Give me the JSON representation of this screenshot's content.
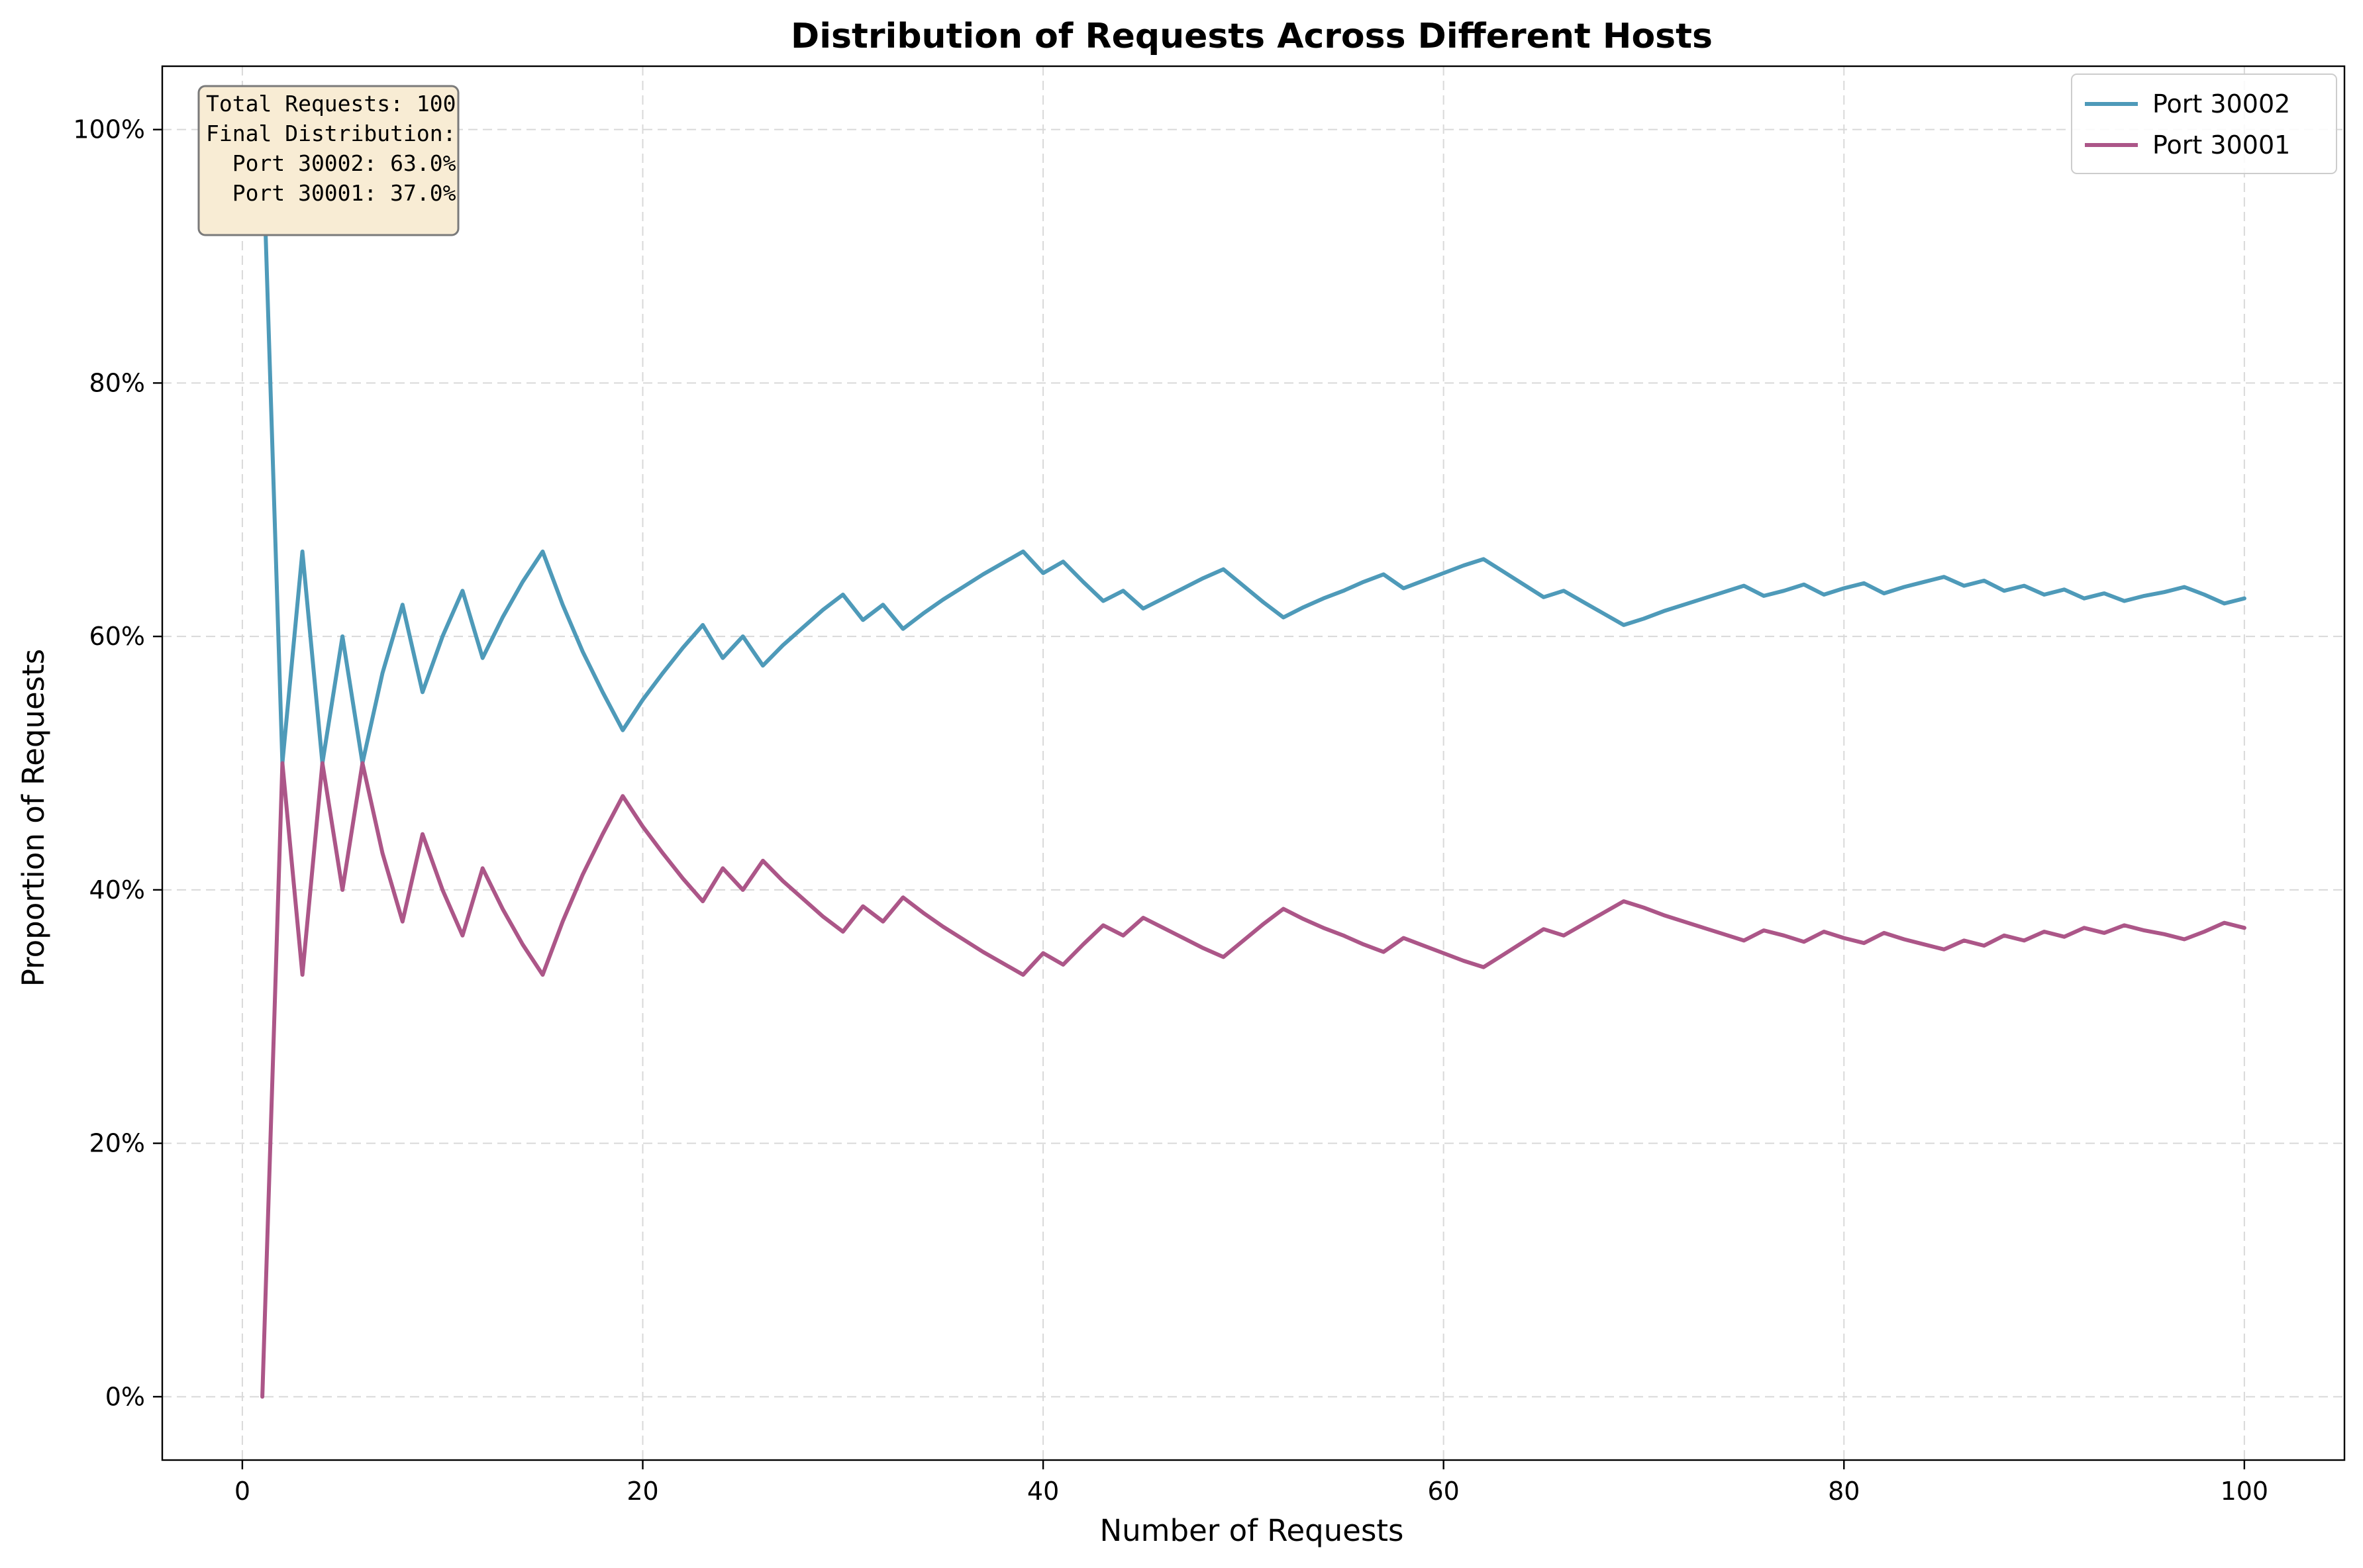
{
  "chart_data": {
    "type": "line",
    "title": "Distribution of Requests Across Different Hosts",
    "xlabel": "Number of Requests",
    "ylabel": "Proportion of Requests",
    "xlim": [
      -4,
      105
    ],
    "ylim": [
      -0.05,
      1.05
    ],
    "x_ticks": [
      0,
      20,
      40,
      60,
      80,
      100
    ],
    "x_tick_labels": [
      "0",
      "20",
      "40",
      "60",
      "80",
      "100"
    ],
    "y_ticks": [
      0,
      0.2,
      0.4,
      0.6,
      0.8,
      1.0
    ],
    "y_tick_labels": [
      "0%",
      "20%",
      "40%",
      "60%",
      "80%",
      "100%"
    ],
    "grid": true,
    "legend_position": "top-right",
    "series": [
      {
        "name": "Port 30002",
        "color": "#4e9ab9",
        "x": [
          1,
          2,
          3,
          4,
          5,
          6,
          7,
          8,
          9,
          10,
          11,
          12,
          13,
          14,
          15,
          16,
          17,
          18,
          19,
          20,
          21,
          22,
          23,
          24,
          25,
          26,
          27,
          28,
          29,
          30,
          31,
          32,
          33,
          34,
          35,
          36,
          37,
          38,
          39,
          40,
          41,
          42,
          43,
          44,
          45,
          46,
          47,
          48,
          49,
          50,
          51,
          52,
          53,
          54,
          55,
          56,
          57,
          58,
          59,
          60,
          61,
          62,
          63,
          64,
          65,
          66,
          67,
          68,
          69,
          70,
          71,
          72,
          73,
          74,
          75,
          76,
          77,
          78,
          79,
          80,
          81,
          82,
          83,
          84,
          85,
          86,
          87,
          88,
          89,
          90,
          91,
          92,
          93,
          94,
          95,
          96,
          97,
          98,
          99,
          100
        ],
        "values": [
          1.0,
          0.5,
          0.667,
          0.5,
          0.6,
          0.5,
          0.571,
          0.625,
          0.556,
          0.6,
          0.636,
          0.583,
          0.615,
          0.643,
          0.667,
          0.625,
          0.588,
          0.556,
          0.526,
          0.55,
          0.571,
          0.591,
          0.609,
          0.583,
          0.6,
          0.577,
          0.593,
          0.607,
          0.621,
          0.633,
          0.613,
          0.625,
          0.606,
          0.618,
          0.629,
          0.639,
          0.649,
          0.658,
          0.667,
          0.65,
          0.659,
          0.643,
          0.628,
          0.636,
          0.622,
          0.63,
          0.638,
          0.646,
          0.653,
          0.64,
          0.627,
          0.615,
          0.623,
          0.63,
          0.636,
          0.643,
          0.649,
          0.638,
          0.644,
          0.65,
          0.656,
          0.661,
          0.651,
          0.641,
          0.631,
          0.636,
          0.627,
          0.618,
          0.609,
          0.614,
          0.62,
          0.625,
          0.63,
          0.635,
          0.64,
          0.632,
          0.636,
          0.641,
          0.633,
          0.638,
          0.642,
          0.634,
          0.639,
          0.643,
          0.647,
          0.64,
          0.644,
          0.636,
          0.64,
          0.633,
          0.637,
          0.63,
          0.634,
          0.628,
          0.632,
          0.635,
          0.639,
          0.633,
          0.626,
          0.63
        ]
      },
      {
        "name": "Port 30001",
        "color": "#ac5688",
        "x": [
          1,
          2,
          3,
          4,
          5,
          6,
          7,
          8,
          9,
          10,
          11,
          12,
          13,
          14,
          15,
          16,
          17,
          18,
          19,
          20,
          21,
          22,
          23,
          24,
          25,
          26,
          27,
          28,
          29,
          30,
          31,
          32,
          33,
          34,
          35,
          36,
          37,
          38,
          39,
          40,
          41,
          42,
          43,
          44,
          45,
          46,
          47,
          48,
          49,
          50,
          51,
          52,
          53,
          54,
          55,
          56,
          57,
          58,
          59,
          60,
          61,
          62,
          63,
          64,
          65,
          66,
          67,
          68,
          69,
          70,
          71,
          72,
          73,
          74,
          75,
          76,
          77,
          78,
          79,
          80,
          81,
          82,
          83,
          84,
          85,
          86,
          87,
          88,
          89,
          90,
          91,
          92,
          93,
          94,
          95,
          96,
          97,
          98,
          99,
          100
        ],
        "values": [
          0.0,
          0.5,
          0.333,
          0.5,
          0.4,
          0.5,
          0.429,
          0.375,
          0.444,
          0.4,
          0.364,
          0.417,
          0.385,
          0.357,
          0.333,
          0.375,
          0.412,
          0.444,
          0.474,
          0.45,
          0.429,
          0.409,
          0.391,
          0.417,
          0.4,
          0.423,
          0.407,
          0.393,
          0.379,
          0.367,
          0.387,
          0.375,
          0.394,
          0.382,
          0.371,
          0.361,
          0.351,
          0.342,
          0.333,
          0.35,
          0.341,
          0.357,
          0.372,
          0.364,
          0.378,
          0.37,
          0.362,
          0.354,
          0.347,
          0.36,
          0.373,
          0.385,
          0.377,
          0.37,
          0.364,
          0.357,
          0.351,
          0.362,
          0.356,
          0.35,
          0.344,
          0.339,
          0.349,
          0.359,
          0.369,
          0.364,
          0.373,
          0.382,
          0.391,
          0.386,
          0.38,
          0.375,
          0.37,
          0.365,
          0.36,
          0.368,
          0.364,
          0.359,
          0.367,
          0.362,
          0.358,
          0.366,
          0.361,
          0.357,
          0.353,
          0.36,
          0.356,
          0.364,
          0.36,
          0.367,
          0.363,
          0.37,
          0.366,
          0.372,
          0.368,
          0.365,
          0.361,
          0.367,
          0.374,
          0.37
        ]
      }
    ]
  },
  "annotation": {
    "lines": [
      "Total Requests: 100",
      "Final Distribution:",
      "  Port 30002: 63.0%",
      "  Port 30001: 37.0%"
    ],
    "background": "#f8ecd4",
    "border": "#7a7a7a"
  }
}
